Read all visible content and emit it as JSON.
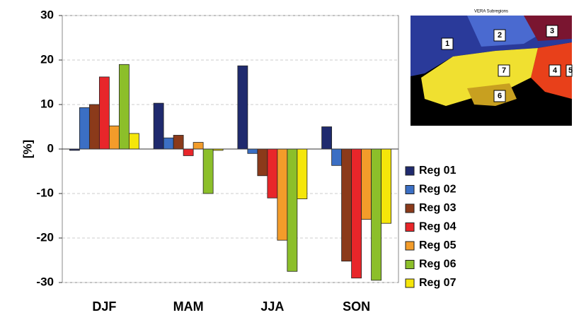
{
  "chart_data": {
    "type": "bar",
    "ylabel": "[%]",
    "categories": [
      "DJF",
      "MAM",
      "JJA",
      "SON"
    ],
    "series": [
      {
        "name": "Reg 01",
        "color": "#1f2a6e",
        "values": [
          -0.3,
          10.3,
          18.7,
          5
        ]
      },
      {
        "name": "Reg 02",
        "color": "#3b6fc4",
        "values": [
          9.3,
          2.5,
          -1,
          -3.7
        ]
      },
      {
        "name": "Reg 03",
        "color": "#8b3a1a",
        "values": [
          10,
          3.1,
          -6,
          -25.2
        ]
      },
      {
        "name": "Reg 04",
        "color": "#e8262a",
        "values": [
          16.2,
          -1.5,
          -11,
          -29
        ]
      },
      {
        "name": "Reg 05",
        "color": "#f39c2a",
        "values": [
          5.2,
          1.5,
          -20.5,
          -15.8
        ]
      },
      {
        "name": "Reg 06",
        "color": "#8cbf2a",
        "values": [
          19,
          -10,
          -27.5,
          -29.5
        ]
      },
      {
        "name": "Reg 07",
        "color": "#f5e60a",
        "values": [
          3.5,
          -0.3,
          -11.2,
          -16.7
        ]
      }
    ],
    "ylim": [
      -30,
      30
    ],
    "yticks": [
      -30,
      -20,
      -10,
      0,
      10,
      20,
      30
    ],
    "grid": true
  },
  "inset_map": {
    "title": "VERA Subregions",
    "labels": [
      "1",
      "2",
      "3",
      "4",
      "5",
      "6",
      "7"
    ]
  }
}
